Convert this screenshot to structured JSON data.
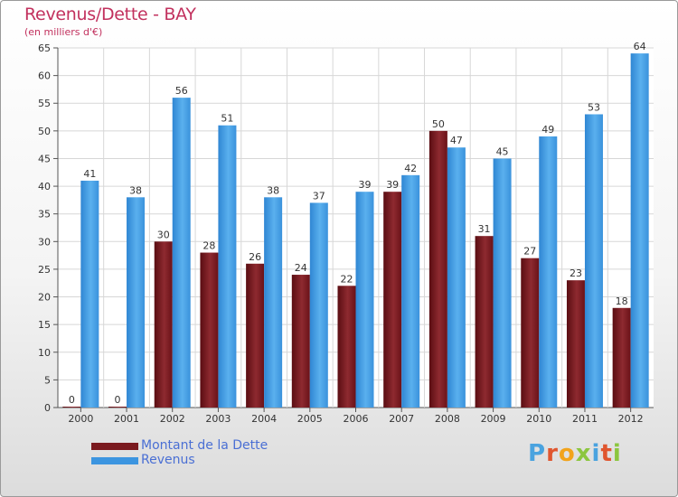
{
  "chart_data": {
    "type": "bar",
    "title": "Revenus/Dette - BAY",
    "subtitle": "(en milliers d'€)",
    "categories": [
      "2000",
      "2001",
      "2002",
      "2003",
      "2004",
      "2005",
      "2006",
      "2007",
      "2008",
      "2009",
      "2010",
      "2011",
      "2012"
    ],
    "series": [
      {
        "name": "Montant de la Dette",
        "color": "#7a1a1f",
        "values": [
          0,
          0,
          30,
          28,
          26,
          24,
          22,
          39,
          50,
          31,
          27,
          23,
          18
        ]
      },
      {
        "name": "Revenus",
        "color": "#3c95e0",
        "values": [
          41,
          38,
          56,
          51,
          38,
          37,
          39,
          42,
          47,
          45,
          49,
          53,
          64
        ]
      }
    ],
    "ylim": [
      0,
      65
    ],
    "yticks": [
      0,
      5,
      10,
      15,
      20,
      25,
      30,
      35,
      40,
      45,
      50,
      55,
      60,
      65
    ],
    "grid": true,
    "legend": "bottom-left"
  },
  "logo": {
    "text": "Proxiti",
    "colors": [
      "#4aa3df",
      "#e0562f",
      "#f2a31b",
      "#8cc63f",
      "#4aa3df",
      "#e0562f",
      "#8cc63f"
    ]
  }
}
